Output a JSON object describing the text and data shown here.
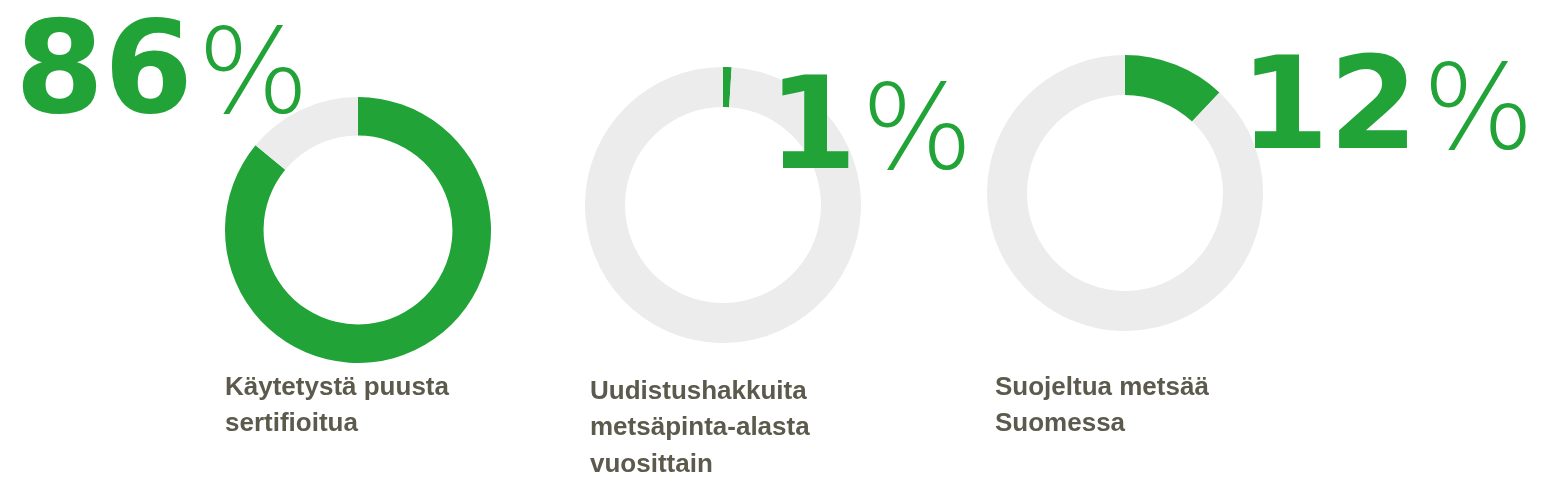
{
  "chart_data": [
    {
      "type": "donut",
      "title": "Käytetystä puusta sertifioitua",
      "categories": [
        null,
        null
      ],
      "values": [
        86,
        14
      ],
      "colors": [
        "#21a338",
        "#ececec"
      ],
      "value_labels": [
        "86%",
        null
      ]
    },
    {
      "type": "donut",
      "title": "Uudistushakkuita metsäpinta-alasta vuosittain",
      "categories": [
        null,
        null
      ],
      "values": [
        1,
        99
      ],
      "colors": [
        "#21a338",
        "#ececec"
      ],
      "value_labels": [
        "1%",
        null
      ]
    },
    {
      "type": "donut",
      "title": "Suojeltua metsää Suomessa",
      "categories": [
        null,
        null
      ],
      "values": [
        12,
        88
      ],
      "colors": [
        "#21a338",
        "#ececec"
      ],
      "value_labels": [
        "12%",
        null
      ]
    }
  ]
}
